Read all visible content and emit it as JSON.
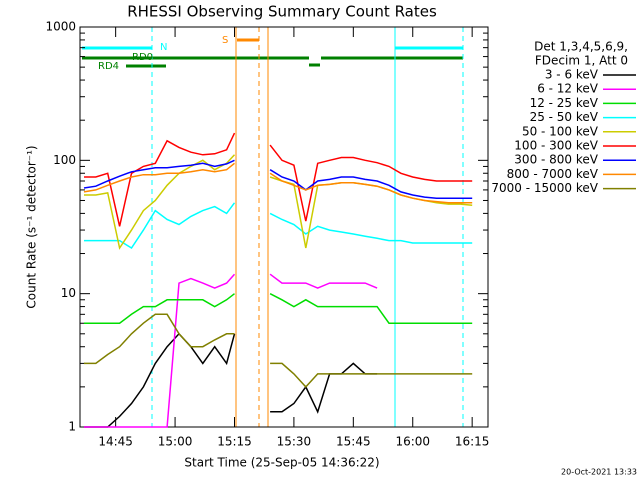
{
  "chart_data": {
    "type": "line",
    "title": "RHESSI Observing Summary Count Rates",
    "x_label": "Start Time (25-Sep-05 14:36:22)",
    "y_label": "Count Rate (s⁻¹ detector⁻¹)",
    "legend_title": [
      "Det 1,3,4,5,6,9,",
      "FDecim 1, Att 0"
    ],
    "footer": "20-Oct-2021 13:33",
    "annotations": [
      "N",
      "RD0",
      "RD4",
      "S"
    ],
    "log_y": true,
    "legend": "right",
    "xlim": [
      "14:36",
      "16:19"
    ],
    "xticks": [
      "14:45",
      "15:00",
      "15:15",
      "15:30",
      "15:45",
      "16:00",
      "16:15"
    ],
    "ylim": [
      1,
      1000
    ],
    "yticks": [
      1,
      10,
      100,
      1000
    ],
    "x": [
      "14:37",
      "14:40",
      "14:43",
      "14:46",
      "14:49",
      "14:52",
      "14:55",
      "14:58",
      "15:01",
      "15:04",
      "15:07",
      "15:10",
      "15:13",
      "15:15",
      "15:18",
      "15:21",
      "15:24",
      "15:27",
      "15:30",
      "15:33",
      "15:36",
      "15:39",
      "15:42",
      "15:45",
      "15:48",
      "15:51",
      "15:54",
      "15:57",
      "16:00",
      "16:03",
      "16:06",
      "16:09",
      "16:12",
      "16:15"
    ],
    "series": [
      {
        "name": "3 - 6 keV",
        "color": "#000000",
        "values": [
          1,
          1,
          1,
          1.2,
          1.5,
          2,
          3,
          4,
          5,
          4,
          3,
          4,
          3,
          5,
          null,
          null,
          1.3,
          1.3,
          1.5,
          2,
          1.3,
          2.5,
          2.5,
          3,
          2.5,
          2.5,
          null,
          null,
          null,
          null,
          null,
          null,
          null,
          null
        ]
      },
      {
        "name": "6 - 12 keV",
        "color": "#ff00ff",
        "values": [
          1,
          1,
          1,
          1,
          1,
          1,
          1,
          1,
          12,
          13,
          12,
          11,
          12,
          14,
          null,
          null,
          14,
          12,
          12,
          12,
          11,
          12,
          12,
          12,
          12,
          11,
          null,
          null,
          null,
          null,
          null,
          null,
          null,
          null
        ]
      },
      {
        "name": "12 - 25 keV",
        "color": "#00dd00",
        "values": [
          6,
          6,
          6,
          6,
          7,
          8,
          8,
          9,
          9,
          9,
          9,
          8,
          9,
          10,
          null,
          null,
          10,
          9,
          8,
          9,
          8,
          8,
          8,
          8,
          8,
          8,
          6,
          6,
          6,
          6,
          6,
          6,
          6,
          6
        ]
      },
      {
        "name": "25 - 50 keV",
        "color": "#00ffff",
        "values": [
          25,
          25,
          25,
          25,
          22,
          30,
          42,
          36,
          33,
          38,
          42,
          45,
          40,
          48,
          null,
          null,
          40,
          36,
          33,
          28,
          32,
          30,
          29,
          28,
          27,
          26,
          25,
          25,
          24,
          24,
          24,
          24,
          24,
          24
        ]
      },
      {
        "name": "50 - 100 keV",
        "color": "#cccc00",
        "values": [
          55,
          55,
          57,
          22,
          30,
          42,
          50,
          65,
          80,
          90,
          100,
          85,
          95,
          110,
          null,
          null,
          75,
          70,
          66,
          22,
          65,
          66,
          68,
          68,
          66,
          64,
          60,
          55,
          52,
          50,
          48,
          47,
          47,
          46
        ]
      },
      {
        "name": "100 - 300 keV",
        "color": "#ff0000",
        "values": [
          75,
          75,
          80,
          32,
          80,
          90,
          95,
          140,
          125,
          115,
          110,
          112,
          120,
          160,
          null,
          null,
          130,
          100,
          92,
          35,
          95,
          100,
          105,
          105,
          100,
          96,
          90,
          80,
          75,
          72,
          70,
          70,
          70,
          70
        ]
      },
      {
        "name": "300 - 800 keV",
        "color": "#0000ff",
        "values": [
          62,
          64,
          70,
          76,
          82,
          85,
          88,
          88,
          90,
          92,
          95,
          90,
          94,
          100,
          null,
          null,
          85,
          75,
          70,
          60,
          70,
          72,
          75,
          75,
          72,
          70,
          65,
          58,
          55,
          53,
          52,
          52,
          52,
          52
        ]
      },
      {
        "name": "800 - 7000 keV",
        "color": "#ff8800",
        "values": [
          58,
          60,
          65,
          70,
          75,
          78,
          78,
          80,
          80,
          82,
          85,
          82,
          85,
          95,
          null,
          null,
          80,
          70,
          65,
          60,
          65,
          66,
          68,
          68,
          66,
          64,
          60,
          55,
          52,
          50,
          49,
          48,
          48,
          48
        ]
      },
      {
        "name": "7000 - 15000 keV",
        "color": "#808000",
        "values": [
          3,
          3,
          3.5,
          4,
          5,
          6,
          7,
          7,
          5,
          4,
          4,
          4.5,
          5,
          5,
          null,
          null,
          3,
          3,
          2.5,
          2,
          2.5,
          2.5,
          2.5,
          2.5,
          2.5,
          2.5,
          2.5,
          2.5,
          2.5,
          2.5,
          2.5,
          2.5,
          2.5,
          2.5
        ]
      }
    ]
  }
}
